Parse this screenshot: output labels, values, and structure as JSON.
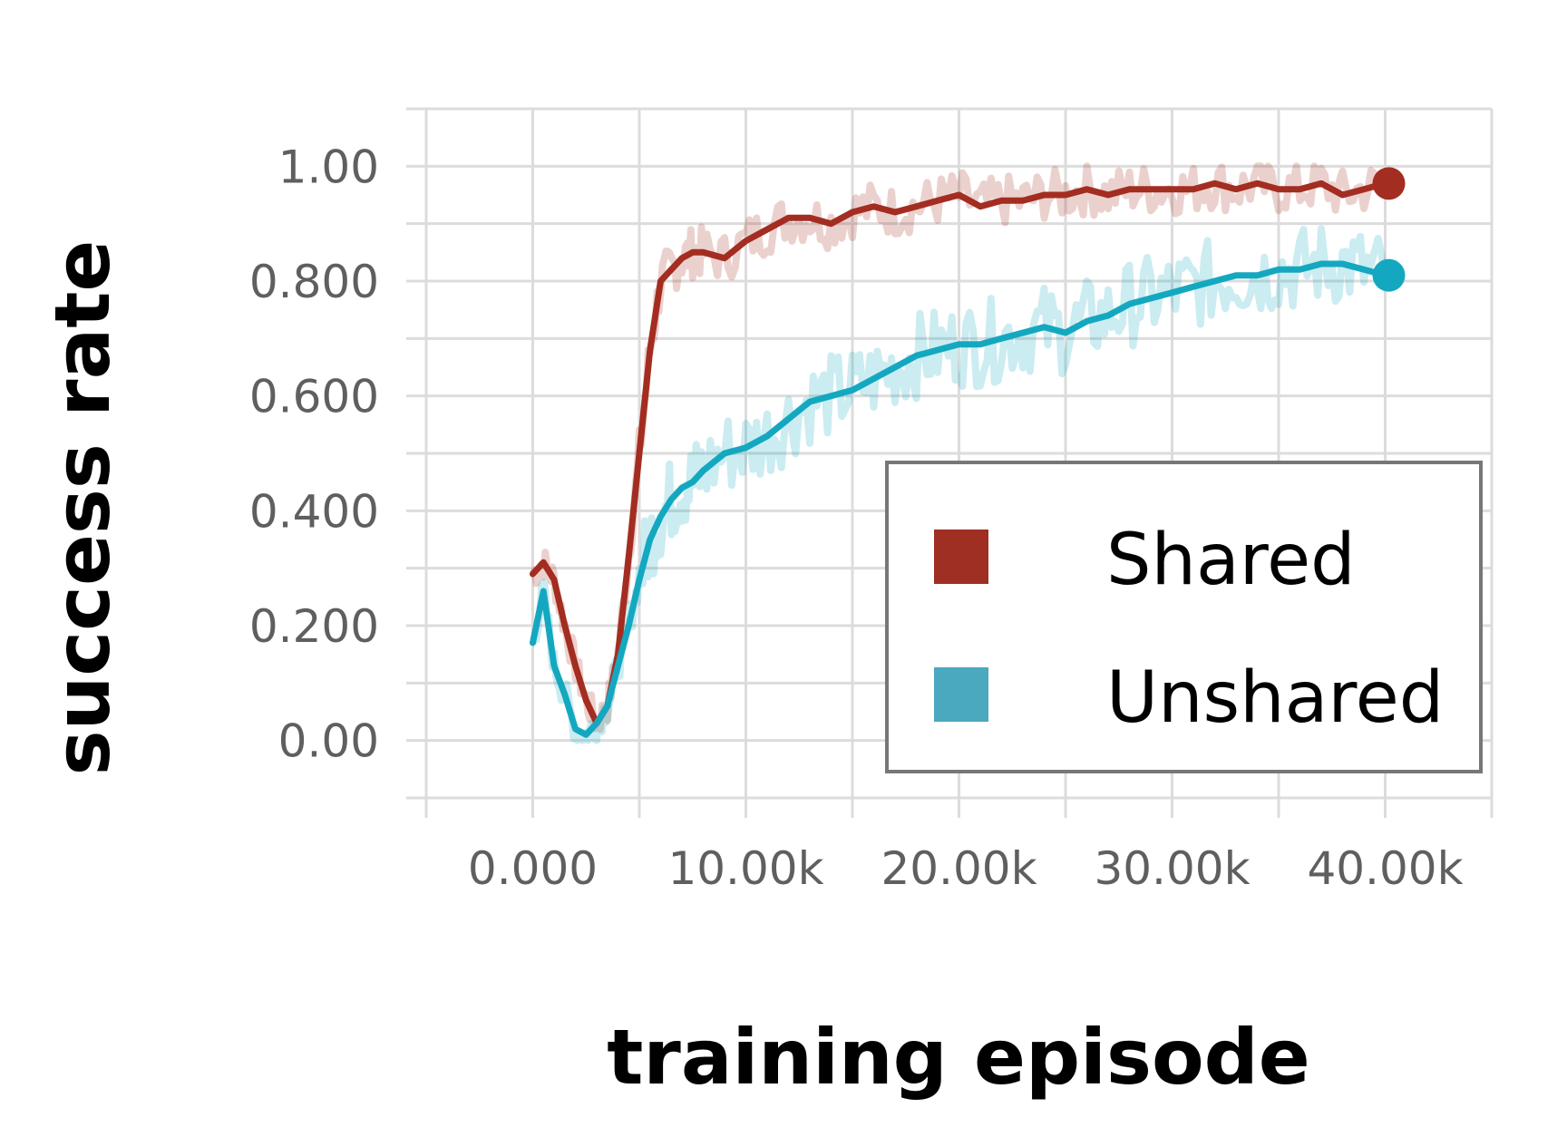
{
  "chart_data": {
    "type": "line",
    "title": "",
    "xlabel": "training episode",
    "ylabel": "success rate",
    "xlim": [
      -5000,
      45000
    ],
    "ylim": [
      -0.1,
      1.1
    ],
    "xticks": [
      0,
      10000,
      20000,
      30000,
      40000
    ],
    "xtick_labels": [
      "0.000",
      "10.00k",
      "20.00k",
      "30.00k",
      "40.00k"
    ],
    "yticks": [
      0,
      0.2,
      0.4,
      0.6,
      0.8,
      1.0
    ],
    "ytick_labels": [
      "0.00",
      "0.200",
      "0.400",
      "0.600",
      "0.800",
      "1.00"
    ],
    "grid": true,
    "legend_position": "lower-right",
    "colors": {
      "shared": "#a32d21",
      "unshared": "#14a8c0",
      "legend_shared": "#9e2f22",
      "legend_unshared": "#4aa8bf"
    },
    "series": [
      {
        "name": "Shared",
        "x": [
          0,
          500,
          1000,
          1500,
          2000,
          2500,
          3000,
          3500,
          4000,
          4500,
          5000,
          5500,
          6000,
          6500,
          7000,
          7500,
          8000,
          9000,
          10000,
          11000,
          12000,
          13000,
          14000,
          15000,
          16000,
          17000,
          18000,
          19000,
          20000,
          21000,
          22000,
          23000,
          24000,
          25000,
          26000,
          27000,
          28000,
          29000,
          30000,
          31000,
          32000,
          33000,
          34000,
          35000,
          36000,
          37000,
          38000,
          39000,
          40000
        ],
        "y": [
          0.29,
          0.31,
          0.28,
          0.2,
          0.13,
          0.07,
          0.03,
          0.06,
          0.15,
          0.32,
          0.5,
          0.68,
          0.8,
          0.82,
          0.84,
          0.85,
          0.85,
          0.84,
          0.87,
          0.89,
          0.91,
          0.91,
          0.9,
          0.92,
          0.93,
          0.92,
          0.93,
          0.94,
          0.95,
          0.93,
          0.94,
          0.94,
          0.95,
          0.95,
          0.96,
          0.95,
          0.96,
          0.96,
          0.96,
          0.96,
          0.97,
          0.96,
          0.97,
          0.96,
          0.96,
          0.97,
          0.95,
          0.96,
          0.97
        ]
      },
      {
        "name": "Unshared",
        "x": [
          0,
          500,
          1000,
          1500,
          2000,
          2500,
          3000,
          3500,
          4000,
          4500,
          5000,
          5500,
          6000,
          6500,
          7000,
          7500,
          8000,
          9000,
          10000,
          11000,
          12000,
          13000,
          14000,
          15000,
          16000,
          17000,
          18000,
          19000,
          20000,
          21000,
          22000,
          23000,
          24000,
          25000,
          26000,
          27000,
          28000,
          29000,
          30000,
          31000,
          32000,
          33000,
          34000,
          35000,
          36000,
          37000,
          38000,
          39000,
          40000
        ],
        "y": [
          0.17,
          0.26,
          0.13,
          0.08,
          0.02,
          0.01,
          0.03,
          0.06,
          0.13,
          0.2,
          0.28,
          0.35,
          0.39,
          0.42,
          0.44,
          0.45,
          0.47,
          0.5,
          0.51,
          0.53,
          0.56,
          0.59,
          0.6,
          0.61,
          0.63,
          0.65,
          0.67,
          0.68,
          0.69,
          0.69,
          0.7,
          0.71,
          0.72,
          0.71,
          0.73,
          0.74,
          0.76,
          0.77,
          0.78,
          0.79,
          0.8,
          0.81,
          0.81,
          0.82,
          0.82,
          0.83,
          0.83,
          0.82,
          0.81
        ]
      }
    ]
  }
}
